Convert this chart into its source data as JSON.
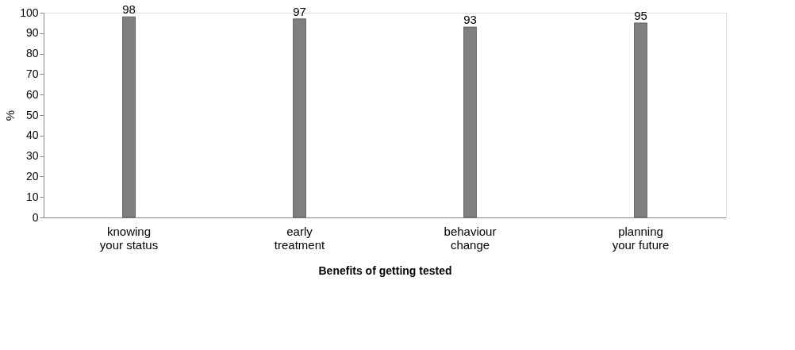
{
  "chart_data": {
    "type": "bar",
    "xlabel": "Benefits of getting tested",
    "ylabel": "%",
    "categories": [
      "knowing your status",
      "early treatment",
      "behaviour change",
      "planning your future"
    ],
    "values": [
      98,
      97,
      93,
      95
    ],
    "color": "#7f7f7f",
    "ylim": [
      0,
      100
    ],
    "yticks": [
      0,
      10,
      20,
      30,
      40,
      50,
      60,
      70,
      80,
      90,
      100
    ],
    "data_labels": true,
    "grid": false
  }
}
